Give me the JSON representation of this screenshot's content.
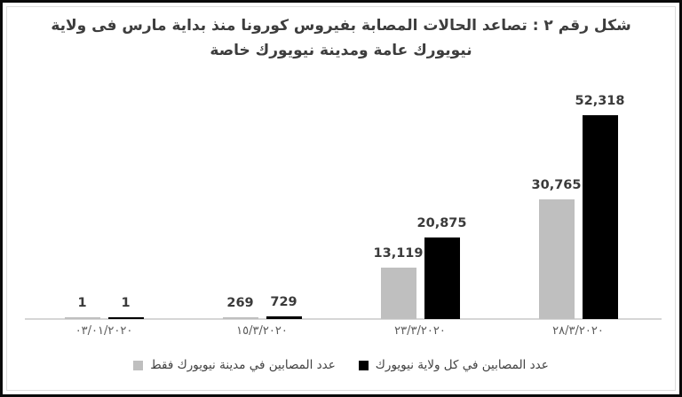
{
  "figure": {
    "title_line1": "شكل رقم ٢ : تصاعد الحالات المصابة بفيروس كورونا منذ بداية مارس فى ولاية",
    "title_line2": "نيويورك عامة ومدينة نيويورك خاصة"
  },
  "colors": {
    "series_city_gray": "#bfbfbf",
    "series_state_black": "#000000",
    "title_text": "#3d3d3d",
    "data_label_text": "#3a3a3a",
    "axis_label_text": "#595959",
    "axis_line": "#d6d6d6",
    "frame_border": "#0a0a0a",
    "background": "#ffffff"
  },
  "chart_data": {
    "type": "bar",
    "title": "شكل رقم ٢ : تصاعد الحالات المصابة بفيروس كورونا منذ بداية مارس فى ولاية نيويورك عامة ومدينة نيويورك خاصة",
    "direction": "rtl",
    "grid": false,
    "legend_position": "bottom",
    "value_axis_visible": false,
    "value_axis_implied_max": 52318,
    "categories": [
      "٠٣/٠١/٢٠٢٠",
      "١٥/٣/٢٠٢٠",
      "٢٣/٣/٢٠٢٠",
      "٢٨/٣/٢٠٢٠"
    ],
    "series": [
      {
        "name": "عدد المصابين في مدينة نيويورك فقط",
        "color": "#bfbfbf",
        "values": [
          1,
          269,
          13119,
          30765
        ],
        "data_labels": [
          "1",
          "269",
          "13,119",
          "30,765"
        ]
      },
      {
        "name": "عدد المصابين في كل ولاية نيويورك",
        "color": "#000000",
        "values": [
          1,
          729,
          20875,
          52318
        ],
        "data_labels": [
          "1",
          "729",
          "20,875",
          "52,318"
        ]
      }
    ]
  }
}
